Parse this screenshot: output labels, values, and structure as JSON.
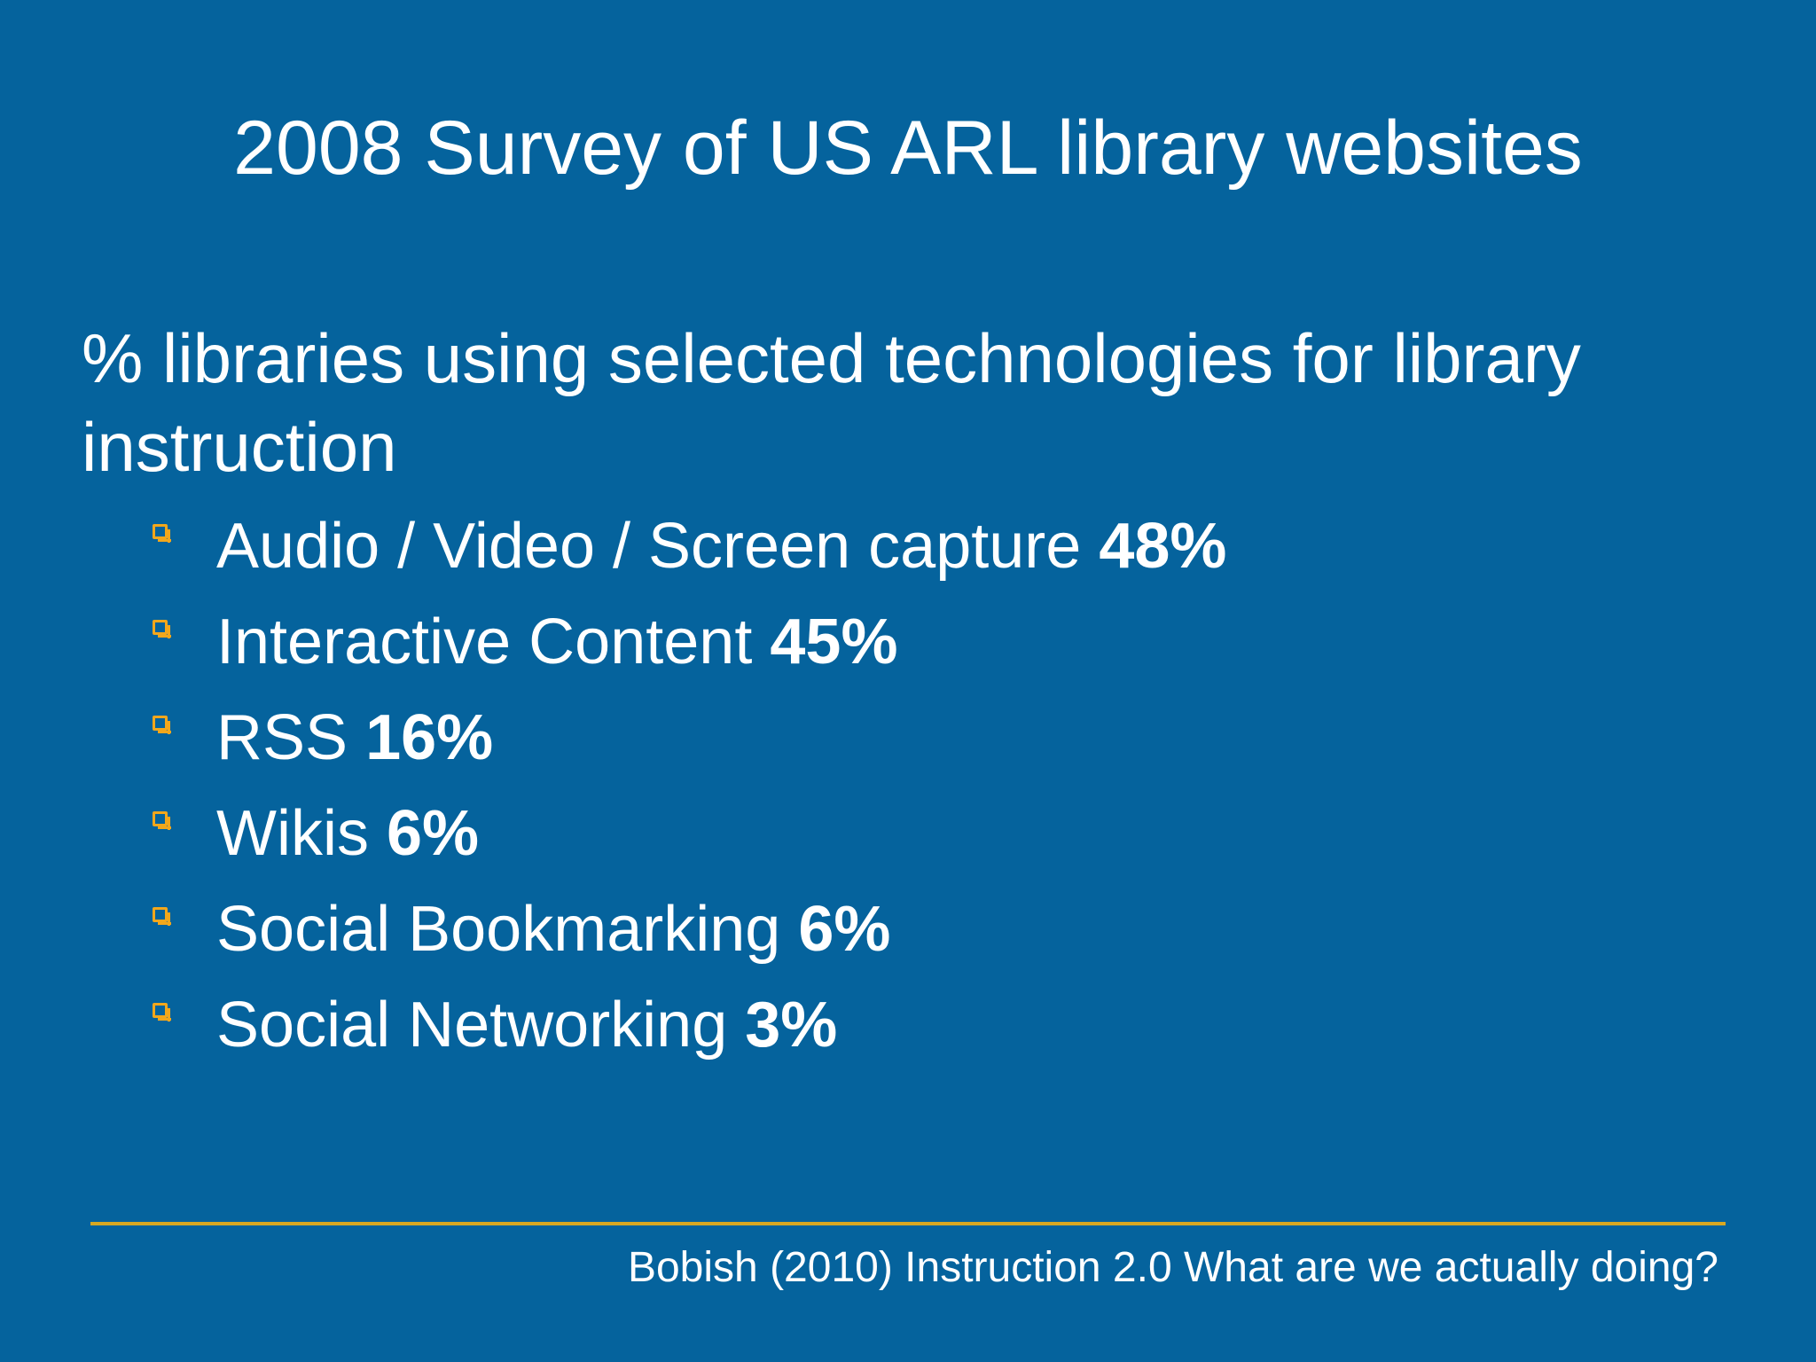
{
  "slide": {
    "title": "2008 Survey of US ARL library websites",
    "heading": "% libraries using selected technologies for library instruction",
    "bullets": [
      {
        "label": "Audio / Video / Screen capture",
        "percent": "48%"
      },
      {
        "label": "Interactive Content",
        "percent": "45%"
      },
      {
        "label": "RSS",
        "percent": "16%"
      },
      {
        "label": "Wikis",
        "percent": "6%"
      },
      {
        "label": "Social Bookmarking",
        "percent": "6%"
      },
      {
        "label": "Social Networking",
        "percent": "3%"
      }
    ],
    "footer": "Bobish (2010) Instruction 2.0 What are we actually doing?"
  },
  "colors": {
    "background": "#05639d",
    "text": "#ffffff",
    "accent": "#f2a71c",
    "rule": "#d8a822"
  },
  "icons": {
    "bullet": "square-bullet-icon"
  }
}
